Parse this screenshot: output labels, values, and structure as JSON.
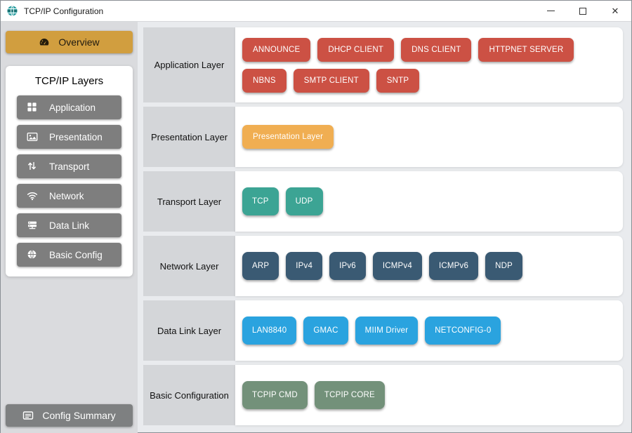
{
  "window": {
    "title": "TCP/IP Configuration",
    "icon": "network-globe-icon",
    "controls": [
      {
        "name": "minimize",
        "icon": "minimize-icon",
        "glyph": "─"
      },
      {
        "name": "maximize",
        "icon": "maximize-icon",
        "glyph": "□"
      },
      {
        "name": "close",
        "icon": "close-icon",
        "glyph": "✕"
      }
    ]
  },
  "sidebar": {
    "overview": {
      "label": "Overview",
      "icon": "gauge-icon"
    },
    "layers_panel": {
      "title": "TCP/IP Layers",
      "items": [
        {
          "label": "Application",
          "icon": "grid-icon"
        },
        {
          "label": "Presentation",
          "icon": "image-icon"
        },
        {
          "label": "Transport",
          "icon": "arrows-vertical-icon"
        },
        {
          "label": "Network",
          "icon": "wifi-icon"
        },
        {
          "label": "Data Link",
          "icon": "hub-icon"
        },
        {
          "label": "Basic Config",
          "icon": "globe-icon"
        }
      ]
    },
    "config_summary": {
      "label": "Config Summary",
      "icon": "list-card-icon"
    }
  },
  "main": {
    "rows": [
      {
        "label": "Application Layer",
        "accent": "#cc5144",
        "modules": [
          "ANNOUNCE",
          "DHCP CLIENT",
          "DNS CLIENT",
          "HTTPNET SERVER",
          "NBNS",
          "SMTP CLIENT",
          "SNTP"
        ]
      },
      {
        "label": "Presentation Layer",
        "accent": "#f0ae52",
        "modules": [
          "Presentation Layer"
        ]
      },
      {
        "label": "Transport Layer",
        "accent": "#3ca494",
        "modules": [
          "TCP",
          "UDP"
        ]
      },
      {
        "label": "Network Layer",
        "accent": "#3a5a73",
        "modules": [
          "ARP",
          "IPv4",
          "IPv6",
          "ICMPv4",
          "ICMPv6",
          "NDP"
        ]
      },
      {
        "label": "Data Link Layer",
        "accent": "#2aa3df",
        "modules": [
          "LAN8840",
          "GMAC",
          "MIIM Driver",
          "NETCONFIG-0"
        ]
      },
      {
        "label": "Basic Configuration",
        "accent": "#73917a",
        "modules": [
          "TCPIP CMD",
          "TCPIP CORE"
        ]
      }
    ]
  },
  "colors": {
    "overview_accent": "#d19e3f",
    "sidebar_button": "#7e7e7e",
    "titlebar_icon_teal": "#2a9da0"
  }
}
